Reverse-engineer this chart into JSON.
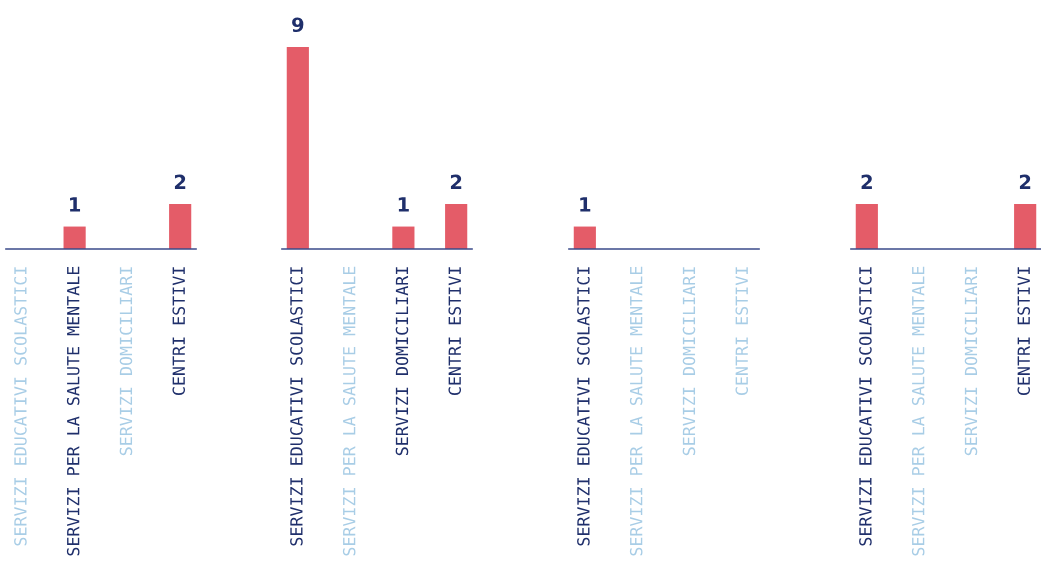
{
  "chart_data": [
    {
      "type": "bar",
      "categories": [
        "SERVIZI EDUCATIVI SCOLASTICI",
        "SERVIZI PER LA SALUTE MENTALE",
        "SERVIZI DOMICILIARI",
        "CENTRI ESTIVI"
      ],
      "values": [
        0,
        1,
        0,
        2
      ],
      "color": "#e45c68",
      "value_labels": [
        null,
        "1",
        null,
        "2"
      ],
      "tick_labels": "x",
      "grid": false,
      "legend": false
    },
    {
      "type": "bar",
      "categories": [
        "SERVIZI EDUCATIVI SCOLASTICI",
        "SERVIZI PER LA SALUTE MENTALE",
        "SERVIZI DOMICILIARI",
        "CENTRI ESTIVI"
      ],
      "values": [
        9,
        0,
        1,
        2
      ],
      "color": "#e45c68",
      "value_labels": [
        "9",
        null,
        "1",
        "2"
      ],
      "tick_labels": "x",
      "grid": false,
      "legend": false
    },
    {
      "type": "bar",
      "categories": [
        "SERVIZI EDUCATIVI SCOLASTICI",
        "SERVIZI PER LA SALUTE MENTALE",
        "SERVIZI DOMICILIARI",
        "CENTRI ESTIVI"
      ],
      "values": [
        1,
        0,
        0,
        0
      ],
      "color": "#e45c68",
      "value_labels": [
        "1",
        null,
        null,
        null
      ],
      "tick_labels": "x",
      "grid": false,
      "legend": false
    },
    {
      "type": "bar",
      "categories": [
        "SERVIZI EDUCATIVI SCOLASTICI",
        "SERVIZI PER LA SALUTE MENTALE",
        "SERVIZI DOMICILIARI",
        "CENTRI ESTIVI"
      ],
      "values": [
        2,
        0,
        0,
        2
      ],
      "color": "#e45c68",
      "value_labels": [
        "2",
        null,
        null,
        "2"
      ],
      "tick_labels": "x",
      "grid": false,
      "legend": false
    }
  ]
}
